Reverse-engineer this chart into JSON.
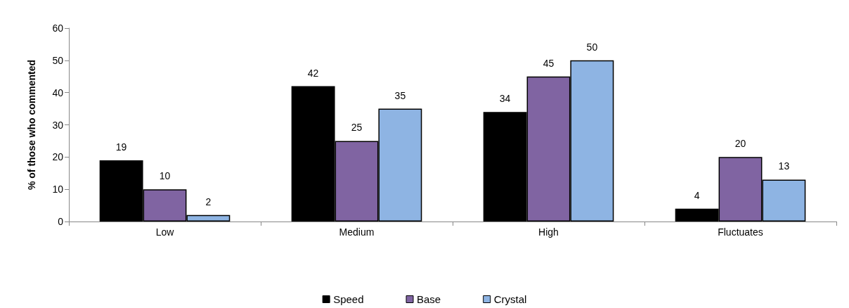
{
  "chart_data": {
    "type": "bar",
    "ylabel": "% of those who commented",
    "categories": [
      "Low",
      "Medium",
      "High",
      "Fluctuates"
    ],
    "series": [
      {
        "name": "Speed",
        "color": "#000000",
        "values": [
          19,
          42,
          34,
          4
        ]
      },
      {
        "name": "Base",
        "color": "#8064a2",
        "values": [
          10,
          25,
          45,
          20
        ]
      },
      {
        "name": "Crystal",
        "color": "#8eb4e3",
        "values": [
          2,
          35,
          50,
          13
        ]
      }
    ],
    "ylim": [
      0,
      60
    ],
    "yticks": [
      0,
      10,
      20,
      30,
      40,
      50,
      60
    ],
    "data_labels": true,
    "legend": "bottom"
  }
}
